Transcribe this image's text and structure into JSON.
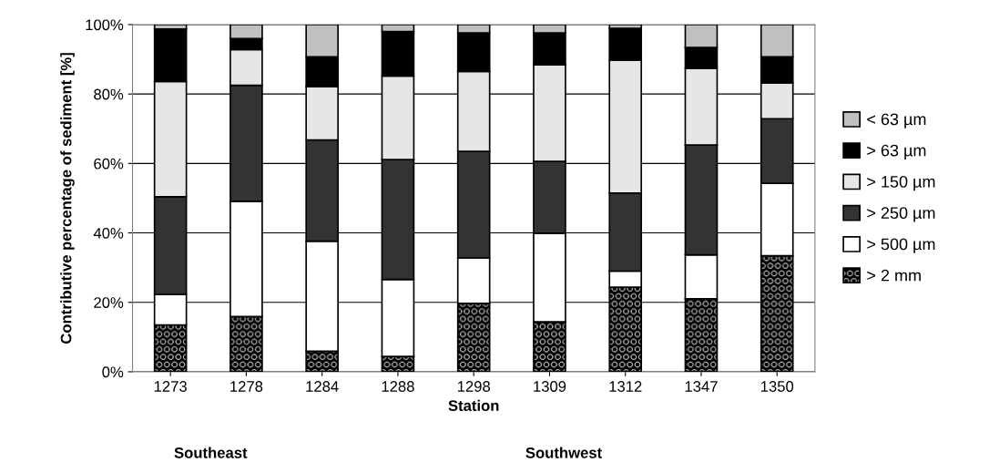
{
  "chart_data": {
    "type": "bar",
    "stacked": true,
    "xlabel": "Station",
    "ylabel": "Contributive percentage of sediment [%]",
    "categories": [
      "1273",
      "1278",
      "1284",
      "1288",
      "1298",
      "1309",
      "1312",
      "1347",
      "1350"
    ],
    "series": [
      {
        "name": "> 2 mm",
        "color": "#000000",
        "values": [
          13.5,
          15.9,
          5.9,
          4.4,
          19.7,
          14.4,
          24.4,
          21.0,
          33.4
        ]
      },
      {
        "name": "> 500 µm",
        "color": "#ffffff",
        "values": [
          8.8,
          33.2,
          31.7,
          22.2,
          13.1,
          25.5,
          4.6,
          12.7,
          20.9
        ]
      },
      {
        "name": "> 250 µm",
        "color": "#333333",
        "values": [
          28.1,
          33.4,
          29.2,
          34.5,
          30.7,
          20.7,
          22.5,
          31.6,
          18.6
        ]
      },
      {
        "name": "> 150 µm",
        "color": "#e6e6e6",
        "values": [
          33.2,
          10.3,
          15.4,
          24.1,
          23.0,
          27.8,
          38.3,
          22.1,
          10.3
        ]
      },
      {
        "name": "> 63 µm",
        "color": "#000000",
        "values": [
          15.1,
          3.2,
          8.5,
          12.8,
          11.1,
          9.2,
          9.1,
          6.0,
          7.5
        ]
      },
      {
        "name": "< 63 µm",
        "color": "#c0c0c0",
        "values": [
          1.3,
          4.0,
          9.3,
          2.0,
          2.4,
          2.4,
          1.1,
          6.6,
          9.3
        ]
      }
    ],
    "ylim": [
      0,
      100
    ],
    "yticks": [
      {
        "value": 0,
        "label": "0%"
      },
      {
        "value": 20,
        "label": "20%"
      },
      {
        "value": 40,
        "label": "40%"
      },
      {
        "value": 60,
        "label": "60%"
      },
      {
        "value": 80,
        "label": "80%"
      },
      {
        "value": 100,
        "label": "100%"
      }
    ],
    "grid": "y",
    "legend": "right",
    "annotations": [
      "Southeast",
      "Southwest"
    ]
  }
}
